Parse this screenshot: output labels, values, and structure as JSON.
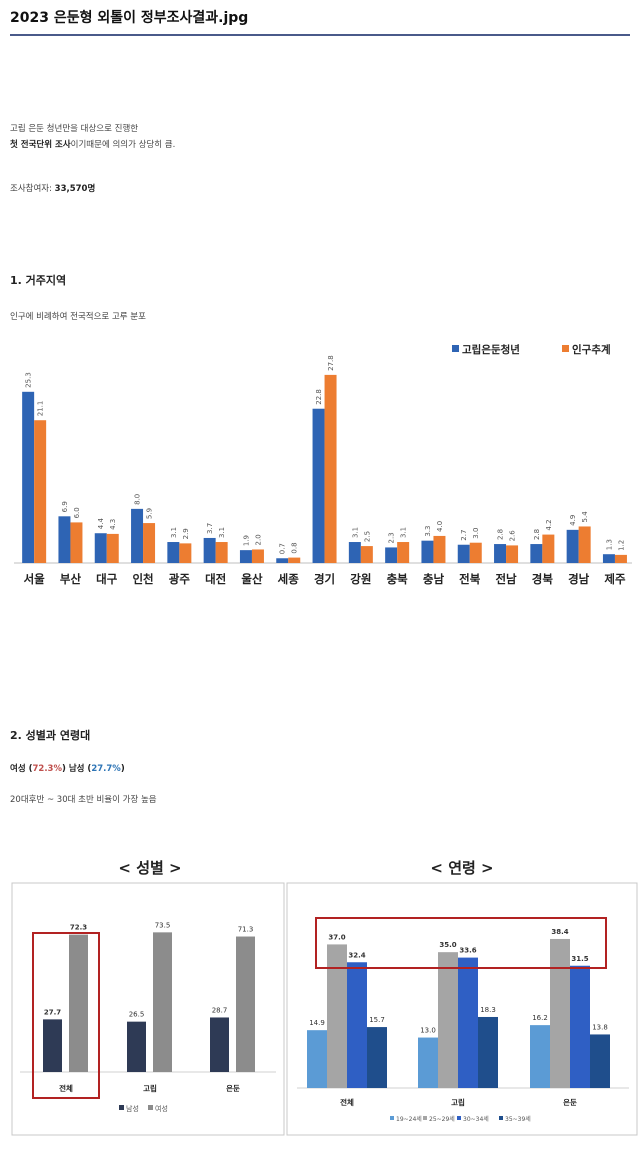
{
  "page": {
    "title": "2023 은둔형 외톨이 정부조사결과.jpg",
    "intro_line1": "고립 은둔 청년만을 대상으로 진행한",
    "intro_line2_bold": "첫 전국단위 조사",
    "intro_line2_rest": "이기때문에 의의가 상당히 큼.",
    "participants_label": "조사참여자: ",
    "participants_value": "33,570명",
    "section1_title": "1. 거주지역",
    "section1_desc": "인구에 비례하여 전국적으로 고루 분포",
    "section2_title": "2. 성별과 연령대",
    "section2_female_label": "여성 (",
    "section2_female_value": "72.3%",
    "section2_male_label": ")  남성 (",
    "section2_male_value": "27.7%",
    "section2_close": ")",
    "section2_desc": "20대후반 ~ 30대 초반 비율이 가장 높음"
  },
  "colors": {
    "blue": "#2e64b4",
    "orange": "#ed7d31",
    "dark_navy": "#2e3a55",
    "gray": "#8c8c8c",
    "age1": "#5b9bd5",
    "age2": "#a5a5a5",
    "age3": "#2f5fc4",
    "age4": "#1f4e8c",
    "highlight": "#b22222"
  },
  "chart_data": [
    {
      "type": "bar",
      "categories": [
        "서울",
        "부산",
        "대구",
        "인천",
        "광주",
        "대전",
        "울산",
        "세종",
        "경기",
        "강원",
        "충북",
        "충남",
        "전북",
        "전남",
        "경북",
        "경남",
        "제주"
      ],
      "series": [
        {
          "name": "고립은둔청년",
          "values": [
            25.3,
            6.9,
            4.4,
            8.0,
            3.1,
            3.7,
            1.9,
            0.7,
            22.8,
            3.1,
            2.3,
            3.3,
            2.7,
            2.8,
            2.8,
            4.9,
            1.3
          ]
        },
        {
          "name": "인구추계",
          "values": [
            21.1,
            6.0,
            4.3,
            5.9,
            2.9,
            3.1,
            2.0,
            0.8,
            27.8,
            2.5,
            3.1,
            4.0,
            3.0,
            2.6,
            4.2,
            5.4,
            1.2
          ]
        }
      ],
      "data_labels": [
        [
          "25.3",
          "6.9",
          "4.4",
          "8.0",
          "3.1",
          "3.7",
          "1.9",
          "0.7",
          "22.8",
          "3.1",
          "2.3",
          "3.3",
          "2.7",
          "2.8",
          "2.8",
          "4.9",
          "1.3"
        ],
        [
          "21.1",
          "6.0",
          "4.3",
          "5.9",
          "2.9",
          "3.1",
          "2.0",
          "0.8",
          "27.8",
          "2.5",
          "3.1",
          "4.0",
          "3.0",
          "2.6",
          "4.2",
          "5.4",
          "1.2"
        ]
      ],
      "ylim": [
        0,
        30
      ],
      "legend": "top-right"
    },
    {
      "type": "bar",
      "title": "< 성별 >",
      "categories": [
        "전체",
        "고립",
        "은둔"
      ],
      "series": [
        {
          "name": "남성",
          "values": [
            27.7,
            26.5,
            28.7
          ]
        },
        {
          "name": "여성",
          "values": [
            72.3,
            73.5,
            71.3
          ]
        }
      ],
      "data_labels": [
        [
          "27.7",
          "26.5",
          "28.7"
        ],
        [
          "72.3",
          "73.5",
          "71.3"
        ]
      ],
      "ylim": [
        0,
        80
      ],
      "legend": "bottom"
    },
    {
      "type": "bar",
      "title": "< 연령 >",
      "categories": [
        "전체",
        "고립",
        "은둔"
      ],
      "series": [
        {
          "name": "19~24세",
          "values": [
            14.9,
            13.0,
            16.2
          ]
        },
        {
          "name": "25~29세",
          "values": [
            37.0,
            35.0,
            38.4
          ]
        },
        {
          "name": "30~34세",
          "values": [
            32.4,
            33.6,
            31.5
          ]
        },
        {
          "name": "35~39세",
          "values": [
            15.7,
            18.3,
            13.8
          ]
        }
      ],
      "data_labels": [
        [
          "14.9",
          "13.0",
          "16.2"
        ],
        [
          "37.0",
          "35.0",
          "38.4"
        ],
        [
          "32.4",
          "33.6",
          "31.5"
        ],
        [
          "15.7",
          "18.3",
          "13.8"
        ]
      ],
      "ylim": [
        0,
        42
      ],
      "legend": "bottom"
    }
  ]
}
